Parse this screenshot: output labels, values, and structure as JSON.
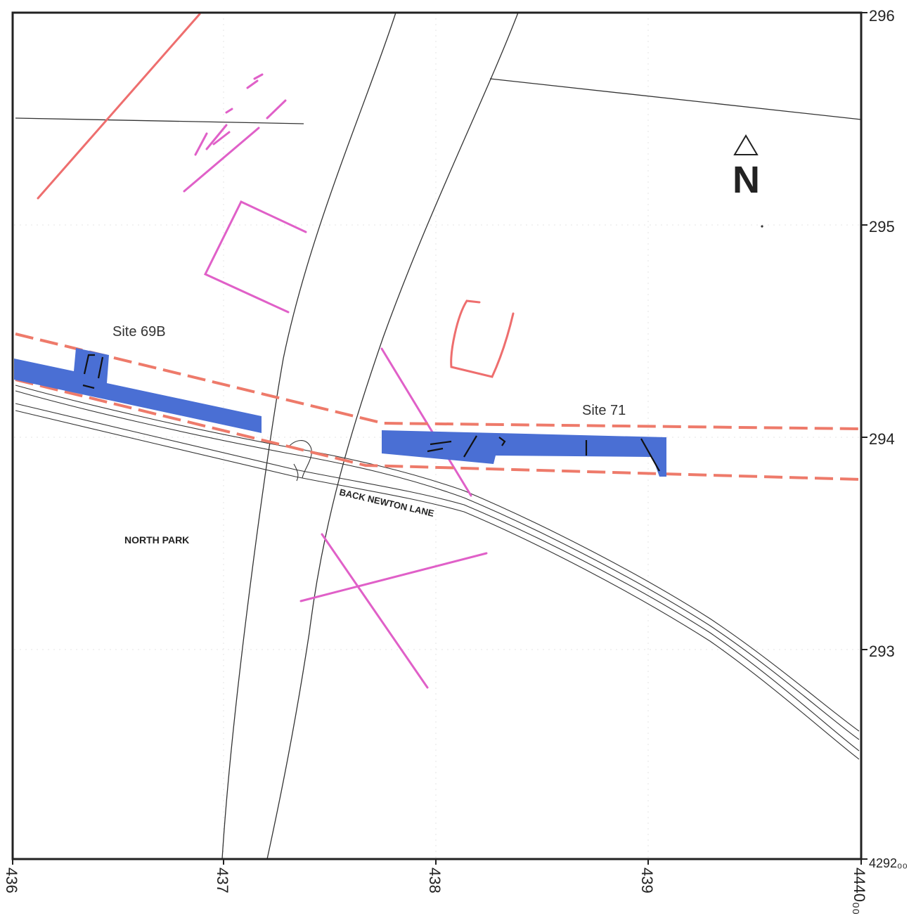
{
  "map": {
    "north_label": "N",
    "grid": {
      "eastings": [
        "436",
        "437",
        "438",
        "439",
        "4440₀₀"
      ],
      "northings": [
        "296",
        "295",
        "294",
        "293"
      ],
      "corner_label": "4292₀₀"
    },
    "labels": {
      "site_69b": "Site 69B",
      "site_71": "Site 71",
      "road": "BACK NEWTON LANE",
      "area": "NORTH PARK"
    },
    "colors": {
      "trench_fill": "#4a6fd4",
      "cropmark_magenta": "#e060c8",
      "cropmark_red": "#ee6e6e",
      "corridor_dash": "#ee7a6a",
      "linework": "#333333"
    },
    "icons": [
      "north-arrow-icon"
    ]
  }
}
